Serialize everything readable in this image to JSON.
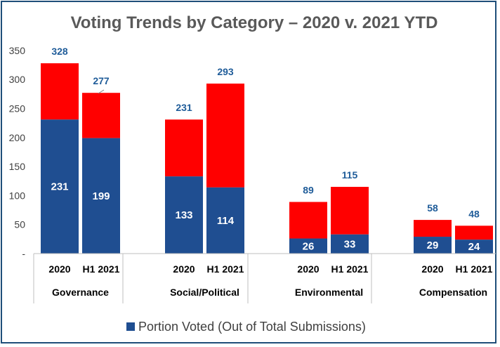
{
  "chart_data": {
    "type": "bar",
    "title": "Voting Trends by Category – 2020 v. 2021 YTD",
    "ylim": [
      0,
      350
    ],
    "yticks": [
      "-",
      "50",
      "100",
      "150",
      "200",
      "250",
      "300",
      "350"
    ],
    "grid": false,
    "legend_position": "bottom",
    "legend": "Portion Voted (Out of Total Submissions)",
    "colors": {
      "voted": "#1f4e91",
      "total": "#ff0000",
      "label": "#1f5c99",
      "frame": "#1f4e79"
    },
    "groups": [
      {
        "category": "Governance",
        "bars": [
          {
            "period": "2020",
            "total": 328,
            "voted": 231
          },
          {
            "period": "H1 2021",
            "total": 277,
            "voted": 199
          }
        ]
      },
      {
        "category": "Social/Political",
        "bars": [
          {
            "period": "2020",
            "total": 231,
            "voted": 133
          },
          {
            "period": "H1 2021",
            "total": 293,
            "voted": 114
          }
        ]
      },
      {
        "category": "Environmental",
        "bars": [
          {
            "period": "2020",
            "total": 89,
            "voted": 26
          },
          {
            "period": "H1 2021",
            "total": 115,
            "voted": 33
          }
        ]
      },
      {
        "category": "Compensation",
        "bars": [
          {
            "period": "2020",
            "total": 58,
            "voted": 29
          },
          {
            "period": "H1 2021",
            "total": 48,
            "voted": 24
          }
        ]
      }
    ]
  }
}
